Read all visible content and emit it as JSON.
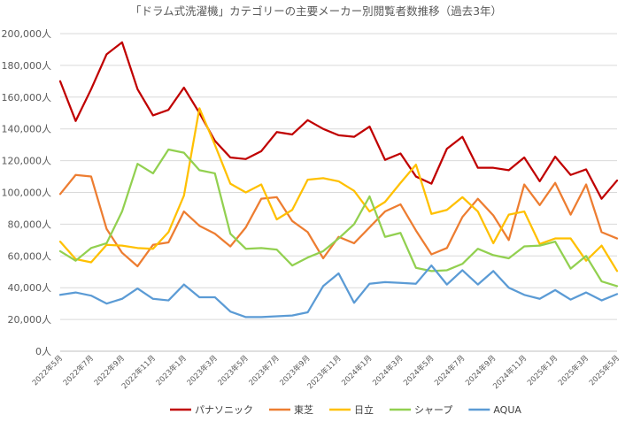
{
  "chart_data": {
    "type": "line",
    "title": "「ドラム式洗濯機」カテゴリーの主要メーカー別閲覧者数推移（過去3年）",
    "xlabel": "",
    "ylabel": "",
    "ylim": [
      0,
      200000
    ],
    "y_ticks": [
      0,
      20000,
      40000,
      60000,
      80000,
      100000,
      120000,
      140000,
      160000,
      180000,
      200000
    ],
    "y_tick_labels": [
      "0人",
      "20,000人",
      "40,000人",
      "60,000人",
      "80,000人",
      "100,000人",
      "120,000人",
      "140,000人",
      "160,000人",
      "180,000人",
      "200,000人"
    ],
    "grid": true,
    "legend_position": "bottom",
    "x": [
      "2022年5月",
      "2022年6月",
      "2022年7月",
      "2022年8月",
      "2022年9月",
      "2022年10月",
      "2022年11月",
      "2022年12月",
      "2023年1月",
      "2023年2月",
      "2023年3月",
      "2023年4月",
      "2023年5月",
      "2023年6月",
      "2023年7月",
      "2023年8月",
      "2023年9月",
      "2023年10月",
      "2023年11月",
      "2023年12月",
      "2024年1月",
      "2024年2月",
      "2024年3月",
      "2024年4月",
      "2024年5月",
      "2024年6月",
      "2024年7月",
      "2024年8月",
      "2024年9月",
      "2024年10月",
      "2024年11月",
      "2024年12月",
      "2025年1月",
      "2025年2月",
      "2025年3月",
      "2025年4月",
      "2025年5月"
    ],
    "x_tick_labels": [
      "2022年5月",
      "2022年7月",
      "2022年9月",
      "2022年11月",
      "2023年1月",
      "2023年3月",
      "2023年5月",
      "2023年7月",
      "2023年9月",
      "2023年11月",
      "2024年1月",
      "2024年3月",
      "2024年5月",
      "2024年7月",
      "2024年9月",
      "2024年11月",
      "2025年1月",
      "2025年3月",
      "2025年5月"
    ],
    "series": [
      {
        "name": "パナソニック",
        "color": "#C00000",
        "values": [
          170000,
          145000,
          165000,
          187000,
          194500,
          165000,
          148500,
          152000,
          166000,
          150000,
          132500,
          122000,
          121000,
          126000,
          138000,
          136500,
          145500,
          140000,
          136000,
          135000,
          141500,
          120500,
          124500,
          110000,
          105500,
          127500,
          135000,
          115500,
          115500,
          114000,
          122000,
          107000,
          122500,
          111000,
          114500,
          96000,
          107500
        ]
      },
      {
        "name": "東芝",
        "color": "#ED7D31",
        "values": [
          99000,
          111000,
          110000,
          77000,
          62000,
          53500,
          67000,
          68500,
          88000,
          79000,
          74000,
          66000,
          78000,
          96000,
          97000,
          82000,
          75000,
          58500,
          72000,
          68000,
          78000,
          88000,
          92500,
          76000,
          61000,
          65000,
          84500,
          96000,
          85500,
          70000,
          105000,
          92000,
          106000,
          86000,
          105000,
          75000,
          71000
        ]
      },
      {
        "name": "日立",
        "color": "#FFC000",
        "values": [
          69000,
          58000,
          56000,
          67000,
          66500,
          65000,
          64500,
          75000,
          98000,
          153000,
          130000,
          105500,
          100000,
          105000,
          83000,
          89000,
          108000,
          109000,
          107000,
          101000,
          88000,
          94000,
          106000,
          117500,
          86500,
          89000,
          97000,
          88000,
          68000,
          86000,
          88000,
          67500,
          71000,
          71000,
          57000,
          66500,
          50500
        ]
      },
      {
        "name": "シャープ",
        "color": "#92D050",
        "values": [
          63000,
          57000,
          65000,
          68000,
          88000,
          118000,
          112000,
          127000,
          125000,
          114000,
          112000,
          74000,
          64500,
          65000,
          64000,
          54000,
          59000,
          63000,
          71000,
          80000,
          97500,
          72000,
          74500,
          52500,
          50500,
          51000,
          55000,
          64500,
          60500,
          58500,
          66000,
          66500,
          69000,
          52000,
          60000,
          44000,
          41000
        ]
      },
      {
        "name": "AQUA",
        "color": "#5B9BD5",
        "values": [
          35500,
          37000,
          35000,
          30000,
          33000,
          39500,
          33000,
          32000,
          42000,
          34000,
          34000,
          25000,
          21500,
          21500,
          22000,
          22500,
          24500,
          41000,
          49000,
          30500,
          42500,
          43500,
          43000,
          42500,
          54000,
          42000,
          51000,
          42000,
          50500,
          40000,
          35500,
          33000,
          38500,
          32500,
          37000,
          32000,
          36000
        ]
      }
    ]
  }
}
